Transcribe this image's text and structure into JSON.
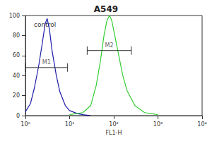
{
  "chart_data": {
    "type": "line",
    "title": "A549",
    "x_label": "FL1-H",
    "log": "x",
    "xlim": [
      1,
      10000
    ],
    "xticks": [
      {
        "value": 1,
        "label": "10⁰"
      },
      {
        "value": 10,
        "label": "10¹"
      },
      {
        "value": 100,
        "label": "10²"
      },
      {
        "value": 1000,
        "label": "10³"
      },
      {
        "value": 10000,
        "label": "10⁴"
      }
    ],
    "ylim": [
      0,
      100
    ],
    "yticks": [
      0,
      20,
      40,
      60,
      80,
      100
    ],
    "grid": false,
    "series": [
      {
        "name": "control",
        "color": "#1c1ca8",
        "x": [
          1,
          1.3,
          1.6,
          2,
          2.4,
          2.8,
          3.1,
          3.5,
          4,
          5,
          6,
          8,
          10,
          15,
          20,
          30
        ],
        "values": [
          4,
          12,
          28,
          50,
          72,
          92,
          97,
          86,
          65,
          40,
          24,
          10,
          5,
          2,
          1,
          0
        ]
      },
      {
        "color": "#33cc33",
        "x": [
          10,
          20,
          30,
          40,
          50,
          60,
          70,
          80,
          90,
          100,
          130,
          160,
          200,
          300,
          500,
          1000
        ],
        "values": [
          1,
          3,
          10,
          30,
          55,
          80,
          95,
          100,
          95,
          85,
          60,
          40,
          25,
          10,
          3,
          1
        ]
      }
    ],
    "gates": [
      {
        "label": "M1",
        "x": [
          1,
          9
        ],
        "y": 48
      },
      {
        "label": "M2",
        "x": [
          25,
          250
        ],
        "y": 65
      }
    ]
  }
}
